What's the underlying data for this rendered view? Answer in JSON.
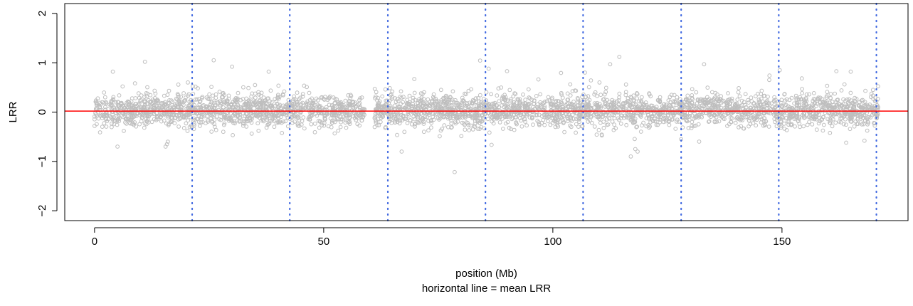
{
  "chart_data": {
    "type": "scatter",
    "xlabel": "position (Mb)",
    "subtitle": "horizontal line = mean LRR",
    "ylabel": "LRR",
    "xlim": [
      -6.5,
      177.5
    ],
    "ylim": [
      -2.2,
      2.2
    ],
    "x_ticks": [
      0,
      50,
      100,
      150
    ],
    "x_tick_labels": [
      "0",
      "50",
      "100",
      "150"
    ],
    "y_ticks": [
      -2,
      -1,
      0,
      1,
      2
    ],
    "y_tick_labels": [
      "−2",
      "−1",
      "0",
      "1",
      "2"
    ],
    "mean_line": {
      "y": 0.02,
      "color": "#ff0000"
    },
    "segment_boundaries": {
      "x": [
        21.3,
        42.6,
        64.0,
        85.3,
        106.6,
        128.0,
        149.3,
        170.6
      ],
      "color": "#4169e1",
      "style": "dotted"
    },
    "point_color": "#bebebe",
    "point_regions": [
      {
        "x_start": 0.0,
        "x_end": 59.0
      },
      {
        "x_start": 61.0,
        "x_end": 171.0
      }
    ],
    "band": {
      "center": 0.03,
      "typical_low": -0.35,
      "typical_high": 0.42
    },
    "notable_points": [
      {
        "x": 11.0,
        "y": 1.02
      },
      {
        "x": 26.0,
        "y": 1.05
      },
      {
        "x": 30.0,
        "y": 0.92
      },
      {
        "x": 114.5,
        "y": 1.12
      },
      {
        "x": 112.5,
        "y": 0.97
      },
      {
        "x": 133.0,
        "y": 0.97
      },
      {
        "x": 15.5,
        "y": -0.7
      },
      {
        "x": 15.8,
        "y": -0.65
      },
      {
        "x": 16.0,
        "y": -0.6
      },
      {
        "x": 117.0,
        "y": -0.9
      },
      {
        "x": 118.5,
        "y": -0.8
      },
      {
        "x": 118.0,
        "y": -0.75
      },
      {
        "x": 128.0,
        "y": -0.55
      },
      {
        "x": 5.0,
        "y": -0.7
      },
      {
        "x": 67.0,
        "y": -0.8
      },
      {
        "x": 164.0,
        "y": -0.62
      },
      {
        "x": 168.0,
        "y": -0.58
      },
      {
        "x": 86.0,
        "y": 0.88
      },
      {
        "x": 90.0,
        "y": 0.83
      },
      {
        "x": 107.0,
        "y": 0.8
      },
      {
        "x": 149.5,
        "y": 0.85
      },
      {
        "x": 165.0,
        "y": 0.82
      },
      {
        "x": 4.0,
        "y": 0.82
      },
      {
        "x": 38.0,
        "y": 0.82
      }
    ]
  }
}
